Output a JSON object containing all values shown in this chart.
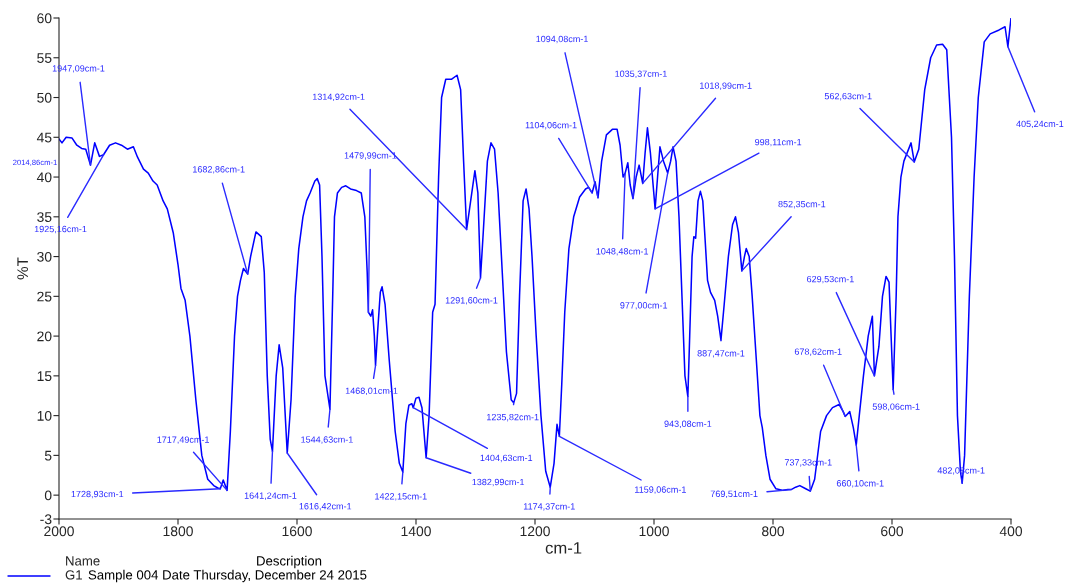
{
  "chart_data": {
    "type": "line",
    "xlabel": "cm-1",
    "ylabel": "%T",
    "xlim": [
      2000,
      400
    ],
    "xticks": [
      2000,
      1800,
      1600,
      1400,
      1200,
      1000,
      800,
      600,
      400
    ],
    "ylim": [
      -3,
      60
    ],
    "yticks": [
      -3,
      0,
      5,
      10,
      15,
      20,
      25,
      30,
      35,
      40,
      45,
      50,
      55,
      60
    ],
    "grid": false,
    "legend": "bottom left",
    "legend_title": "Name",
    "x": [
      2000,
      1995,
      1988,
      1978,
      1970,
      1962,
      1955,
      1947.09,
      1940,
      1932,
      1925.16,
      1915,
      1905,
      1895,
      1885,
      1875,
      1868,
      1858,
      1850,
      1842,
      1835,
      1825,
      1818,
      1808,
      1800,
      1795,
      1788,
      1780,
      1770,
      1760,
      1750,
      1740,
      1733,
      1728.93,
      1724,
      1717.49,
      1712,
      1705,
      1700,
      1695,
      1690,
      1682.86,
      1678,
      1669,
      1660,
      1655,
      1650,
      1645,
      1641.24,
      1635,
      1630,
      1624,
      1616.42,
      1610,
      1603,
      1597,
      1590,
      1584,
      1578,
      1570,
      1566,
      1562,
      1558,
      1553,
      1544.63,
      1540,
      1537,
      1532,
      1525,
      1518,
      1510,
      1500,
      1492,
      1486,
      1482,
      1479.99,
      1476,
      1473,
      1470,
      1468.01,
      1465,
      1460,
      1457,
      1452,
      1445,
      1435,
      1428,
      1422.15,
      1417,
      1412,
      1407,
      1404.63,
      1400,
      1395,
      1390,
      1382.99,
      1378,
      1372,
      1368,
      1362,
      1357,
      1350,
      1340,
      1331,
      1325,
      1320,
      1314.92,
      1310,
      1301,
      1296,
      1291.6,
      1287,
      1280,
      1274,
      1268,
      1262,
      1255,
      1248,
      1240,
      1235.82,
      1231,
      1226,
      1220,
      1215,
      1210,
      1205,
      1198,
      1190,
      1182,
      1174.37,
      1168,
      1163,
      1159.06,
      1155,
      1150,
      1143,
      1135,
      1125,
      1115,
      1110,
      1104.06,
      1099,
      1094.08,
      1088,
      1080,
      1070,
      1062,
      1057,
      1052,
      1048.48,
      1044,
      1040,
      1035.37,
      1030,
      1025,
      1018.99,
      1015,
      1011,
      1006,
      998.11,
      994,
      990,
      984,
      977,
      972,
      968,
      963,
      958,
      953,
      948,
      943.08,
      940,
      936,
      933,
      930,
      926,
      922,
      918,
      914,
      910,
      905,
      898,
      893,
      887.47,
      882,
      875,
      868,
      863,
      858,
      852.35,
      848,
      845,
      840,
      835,
      828,
      822,
      818,
      812,
      805,
      795,
      783,
      775,
      769.51,
      762,
      755,
      745,
      737.33,
      730,
      720,
      710,
      700,
      689,
      682,
      678.62,
      671,
      665,
      660.1,
      655,
      648,
      640,
      633,
      629.53,
      622,
      616,
      610,
      605,
      598.06,
      593,
      590,
      585,
      580,
      568,
      562.63,
      555,
      545,
      535,
      525,
      515,
      508,
      500,
      495,
      490,
      485,
      482.08,
      478,
      470,
      462,
      455,
      445,
      435,
      420,
      410,
      405.24,
      400
    ],
    "series": [
      {
        "name": "G1",
        "color": "#0000ff",
        "values": [
          44.8,
          44.3,
          45.0,
          44.9,
          44.0,
          43.6,
          43.5,
          41.5,
          44.3,
          42.6,
          42.8,
          44.0,
          44.3,
          44.0,
          43.5,
          43.8,
          42.5,
          41.0,
          40.5,
          39.5,
          39.0,
          37.0,
          36.0,
          33.0,
          29.0,
          26.0,
          24.5,
          20.0,
          12.0,
          5.0,
          2.0,
          1.2,
          0.9,
          0.8,
          1.9,
          0.6,
          8.0,
          20.0,
          25.0,
          27.0,
          28.5,
          27.8,
          30.0,
          33.1,
          32.5,
          28.0,
          15.0,
          7.0,
          5.5,
          15.0,
          18.9,
          16.0,
          5.3,
          12.0,
          25.0,
          31.0,
          35.0,
          37.0,
          38.0,
          39.5,
          39.8,
          39.0,
          30.0,
          15.0,
          10.8,
          25.0,
          35.0,
          38.0,
          38.7,
          38.9,
          38.5,
          38.3,
          38.0,
          35.0,
          28.0,
          23.0,
          22.5,
          23.3,
          20.0,
          16.3,
          20.0,
          25.5,
          26.2,
          24.0,
          17.0,
          8.0,
          4.0,
          2.9,
          9.0,
          11.3,
          11.5,
          11.0,
          12.2,
          12.3,
          11.0,
          4.7,
          10.0,
          23.0,
          24.0,
          40.0,
          50.0,
          52.3,
          52.3,
          52.8,
          51.0,
          42.0,
          33.4,
          36.0,
          40.8,
          38.0,
          27.3,
          33.0,
          42.0,
          44.3,
          43.5,
          38.0,
          28.0,
          18.0,
          12.0,
          11.6,
          12.8,
          25.0,
          37.0,
          38.5,
          36.0,
          30.0,
          20.0,
          10.0,
          3.0,
          1.0,
          4.0,
          8.9,
          7.4,
          14.0,
          23.0,
          31.0,
          35.0,
          37.5,
          38.5,
          38.7,
          38.0,
          39.4,
          37.4,
          42.0,
          45.3,
          46.0,
          46.0,
          44.0,
          40.0,
          40.5,
          41.8,
          39.0,
          37.3,
          40.0,
          41.5,
          39.2,
          43.0,
          46.2,
          43.0,
          36.0,
          40.0,
          43.8,
          42.0,
          40.5,
          42.0,
          43.8,
          42.0,
          35.0,
          25.0,
          15.0,
          12.4,
          20.0,
          30.0,
          32.5,
          32.3,
          37.0,
          38.2,
          37.0,
          32.0,
          27.0,
          25.5,
          24.5,
          22.5,
          19.5,
          24.0,
          30.0,
          34.0,
          35.0,
          33.0,
          28.2,
          30.0,
          31.0,
          30.0,
          25.0,
          17.0,
          10.0,
          8.5,
          5.0,
          2.0,
          0.8,
          0.6,
          0.7,
          0.7,
          1.0,
          1.2,
          0.8,
          0.5,
          2.0,
          8.0,
          10.0,
          11.0,
          11.4,
          10.5,
          9.9,
          10.5,
          8.5,
          6.3,
          10.0,
          15.0,
          20.0,
          22.5,
          15.0,
          18.7,
          25.0,
          27.5,
          26.8,
          13.3,
          25.0,
          35.0,
          40.0,
          42.0,
          44.3,
          41.9,
          43.5,
          51.0,
          55.0,
          56.6,
          56.7,
          56.0,
          45.0,
          30.0,
          10.0,
          3.0,
          1.5,
          5.0,
          25.0,
          40.0,
          50.0,
          57.0,
          58.0,
          58.5,
          58.9,
          56.4,
          60.0
        ]
      }
    ],
    "annotations": [
      {
        "text": "1947,09cm-1",
        "x": 1947.09,
        "y": 41.5
      },
      {
        "text": "1925,16cm-1",
        "x": 1925.16,
        "y": 42.8
      },
      {
        "text": "1682,86cm-1",
        "x": 1682.86,
        "y": 27.8
      },
      {
        "text": "1717,49cm-1",
        "x": 1717.49,
        "y": 0.6
      },
      {
        "text": "1728,93cm-1",
        "x": 1728.93,
        "y": 0.8
      },
      {
        "text": "1641,24cm-1",
        "x": 1641.24,
        "y": 5.5
      },
      {
        "text": "1616,42cm-1",
        "x": 1616.42,
        "y": 5.3
      },
      {
        "text": "1544,63cm-1",
        "x": 1544.63,
        "y": 10.8
      },
      {
        "text": "1479,99cm-1",
        "x": 1479.99,
        "y": 23
      },
      {
        "text": "1468,01cm-1",
        "x": 1468.01,
        "y": 16.3
      },
      {
        "text": "1314,92cm-1",
        "x": 1314.92,
        "y": 33.4
      },
      {
        "text": "1291,60cm-1",
        "x": 1291.6,
        "y": 27.3
      },
      {
        "text": "1422,15cm-1",
        "x": 1422.15,
        "y": 2.9
      },
      {
        "text": "1404,63cm-1",
        "x": 1404.63,
        "y": 11.0
      },
      {
        "text": "1382,99cm-1",
        "x": 1382.99,
        "y": 4.7
      },
      {
        "text": "1235,82cm-1",
        "x": 1235.82,
        "y": 11.6
      },
      {
        "text": "1174,37cm-1",
        "x": 1174.37,
        "y": 1.0
      },
      {
        "text": "1159,06cm-1",
        "x": 1159.06,
        "y": 7.4
      },
      {
        "text": "1104,06cm-1",
        "x": 1104.06,
        "y": 38.0
      },
      {
        "text": "1094,08cm-1",
        "x": 1094.08,
        "y": 37.4
      },
      {
        "text": "1048,48cm-1",
        "x": 1048.48,
        "y": 40.5
      },
      {
        "text": "1035,37cm-1",
        "x": 1035.37,
        "y": 37.3
      },
      {
        "text": "1018,99cm-1",
        "x": 1018.99,
        "y": 39.2
      },
      {
        "text": "998,11cm-1",
        "x": 998.11,
        "y": 36.0
      },
      {
        "text": "977,00cm-1",
        "x": 977.0,
        "y": 40.5
      },
      {
        "text": "943,08cm-1",
        "x": 943.08,
        "y": 12.4
      },
      {
        "text": "887,47cm-1",
        "x": 887.47,
        "y": 19.5
      },
      {
        "text": "852,35cm-1",
        "x": 852.35,
        "y": 28.2
      },
      {
        "text": "769,51cm-1",
        "x": 769.51,
        "y": 0.7
      },
      {
        "text": "737,33cm-1",
        "x": 737.33,
        "y": 0.5
      },
      {
        "text": "678,62cm-1",
        "x": 678.62,
        "y": 9.9
      },
      {
        "text": "660,10cm-1",
        "x": 660.1,
        "y": 6.3
      },
      {
        "text": "629,53cm-1",
        "x": 629.53,
        "y": 15.0
      },
      {
        "text": "598,06cm-1",
        "x": 598.06,
        "y": 13.3
      },
      {
        "text": "562,63cm-1",
        "x": 562.63,
        "y": 41.9
      },
      {
        "text": "482,08cm-1",
        "x": 482.08,
        "y": 1.5
      },
      {
        "text": "405,24cm-1",
        "x": 405.24,
        "y": 56.4
      },
      "2014,86cm-1",
      "Description",
      "Sample 004 Date Thursday, December 24 2015"
    ]
  }
}
